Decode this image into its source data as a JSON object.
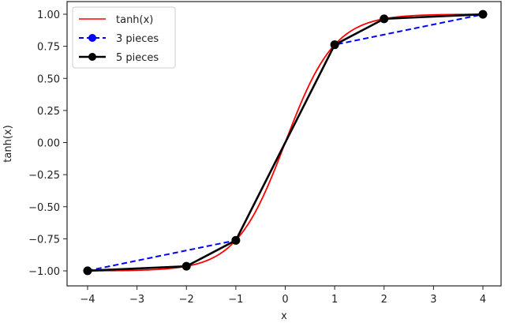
{
  "chart_data": {
    "type": "line",
    "title": "",
    "xlabel": "x",
    "ylabel": "tanh(x)",
    "xlim": [
      -4.3,
      4.3
    ],
    "ylim": [
      -1.1,
      1.1
    ],
    "grid": false,
    "legend_position": "upper left",
    "xticks": [
      -4,
      -3,
      -2,
      -1,
      0,
      1,
      2,
      3,
      4
    ],
    "xtick_labels": [
      "−4",
      "−3",
      "−2",
      "−1",
      "0",
      "1",
      "2",
      "3",
      "4"
    ],
    "yticks": [
      1.0,
      0.75,
      0.5,
      0.25,
      0.0,
      -0.25,
      -0.5,
      -0.75,
      -1.0
    ],
    "ytick_labels": [
      "1.00",
      "0.75",
      "0.50",
      "0.25",
      "0.00",
      "−0.25",
      "−0.50",
      "−0.75",
      "−1.00"
    ],
    "series": [
      {
        "name": "tanh(x)",
        "style": "solid",
        "color": "#ff0000",
        "marker": "none",
        "function": "tanh",
        "x_range": [
          -4,
          4
        ]
      },
      {
        "name": "3 pieces",
        "style": "dashed",
        "color": "#0000ff",
        "marker": "circle",
        "x": [
          -4,
          -1,
          1,
          4
        ],
        "y": [
          -0.999,
          -0.762,
          0.762,
          0.999
        ]
      },
      {
        "name": "5 pieces",
        "style": "solid",
        "color": "#000000",
        "marker": "circle",
        "x": [
          -4,
          -2,
          -1,
          1,
          2,
          4
        ],
        "y": [
          -0.999,
          -0.964,
          -0.762,
          0.762,
          0.964,
          0.999
        ]
      }
    ]
  }
}
